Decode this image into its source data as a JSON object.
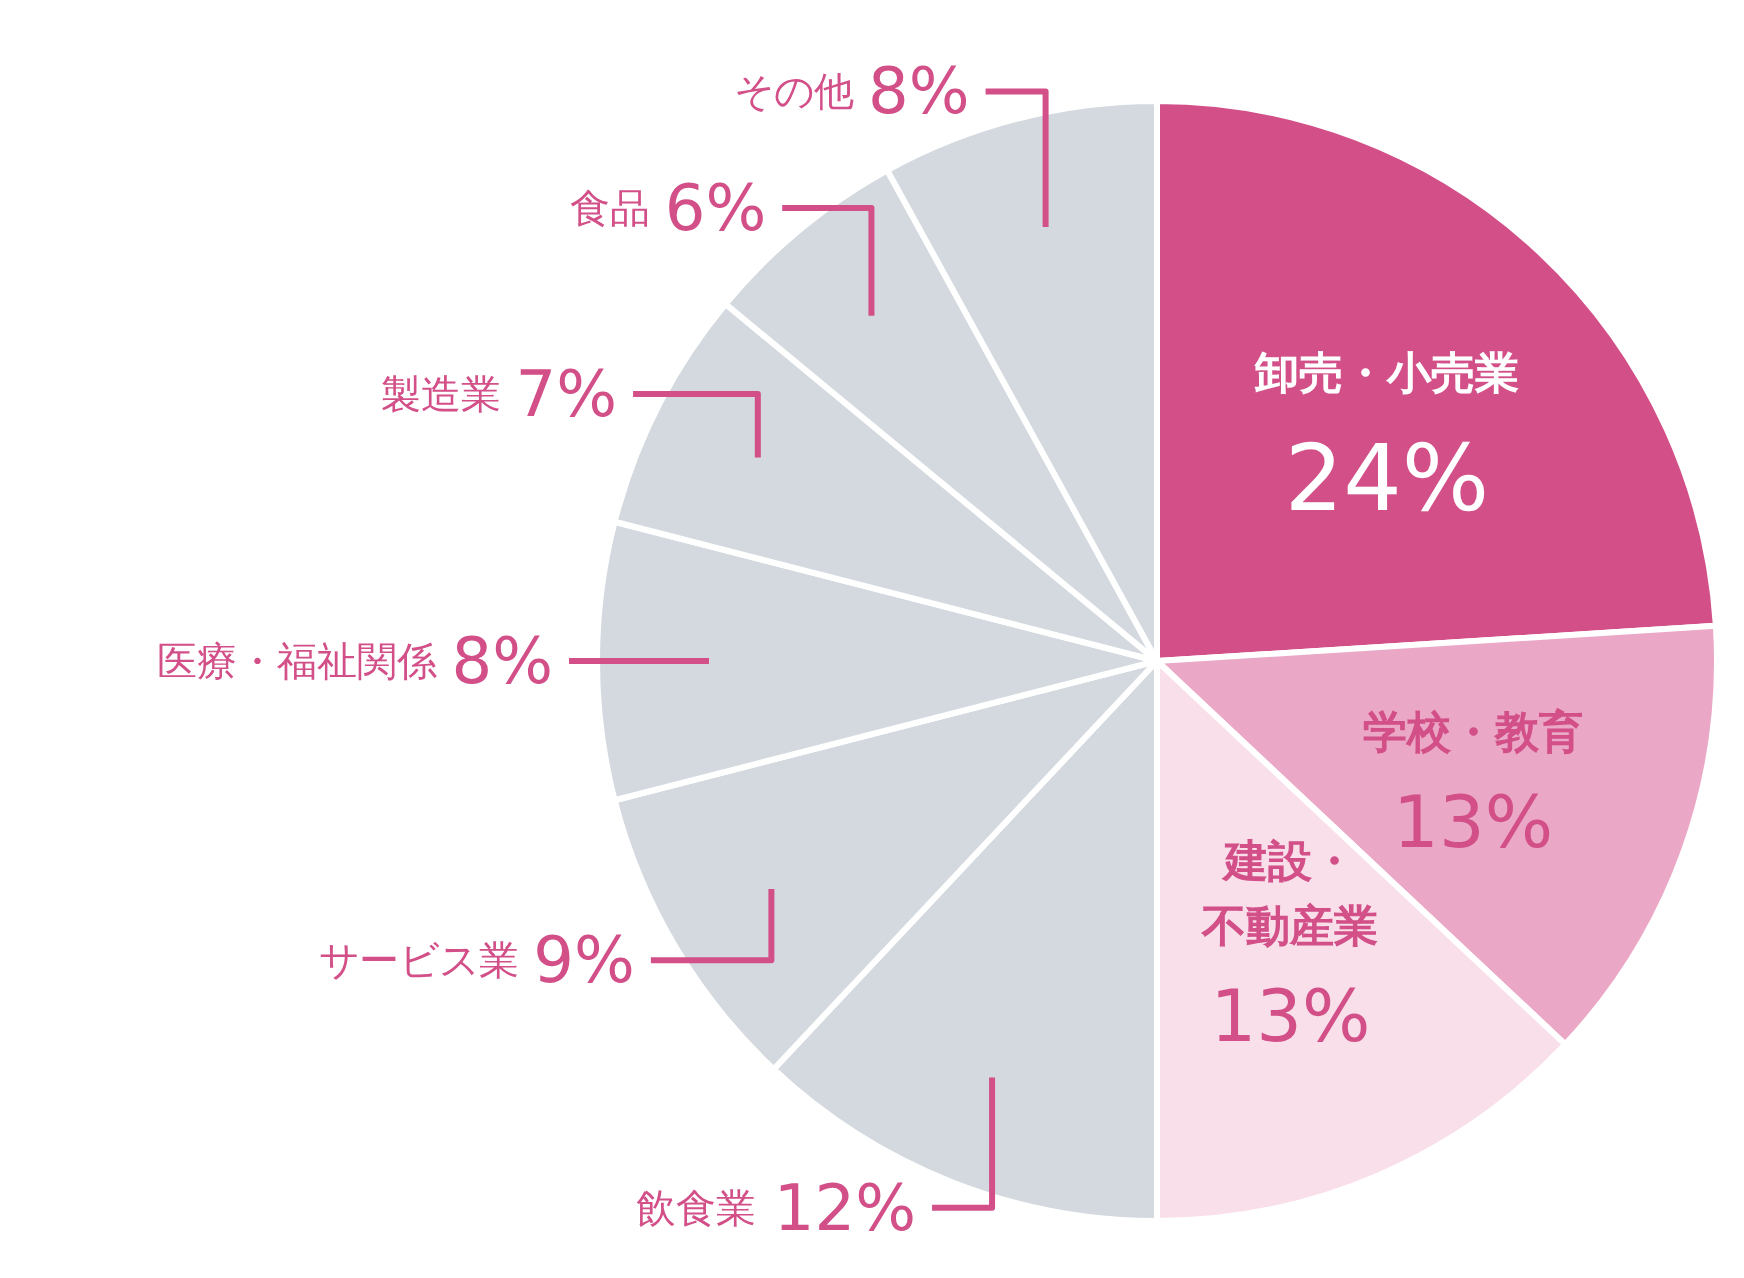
{
  "chart_data": {
    "type": "pie",
    "categories": [
      "卸売・小売業",
      "学校・教育",
      "建設・不動産業",
      "飲食業",
      "サービス業",
      "医療・福祉関係",
      "製造業",
      "食品",
      "その他"
    ],
    "values": [
      24,
      13,
      13,
      12,
      9,
      8,
      7,
      6,
      8
    ],
    "value_labels": [
      "24%",
      "13%",
      "13%",
      "12%",
      "9%",
      "8%",
      "7%",
      "6%",
      "8%"
    ],
    "colors": [
      "#d24f88",
      "#eba8c6",
      "#f9dfea",
      "#d3d9de",
      "#d3d9de",
      "#d3d9de",
      "#d3d9de",
      "#d3d9de",
      "#d3d9de"
    ]
  }
}
